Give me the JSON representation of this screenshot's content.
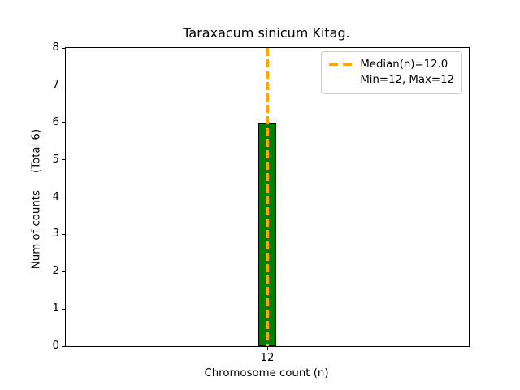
{
  "chart_data": {
    "type": "bar",
    "title": "Taraxacum sinicum Kitag.",
    "xlabel": "Chromosome count (n)",
    "ylabel": "Num of counts     (Total 6)",
    "categories": [
      "12"
    ],
    "values": [
      6
    ],
    "ylim": [
      0,
      8
    ],
    "yticks": [
      0,
      1,
      2,
      3,
      4,
      5,
      6,
      7,
      8
    ],
    "bar_color": "#008000",
    "bar_edge_color": "#000000",
    "median_line": {
      "x": 12,
      "color": "#ffa500",
      "style": "dashed"
    },
    "legend": {
      "position": "upper right",
      "entries": [
        {
          "label": "Median(n)=12.0",
          "handle": "orange-dashed-line"
        },
        {
          "label": "Min=12, Max=12",
          "handle": "none"
        }
      ]
    },
    "grid": false,
    "background_color": "#ffffff",
    "spine_color": "#000000"
  }
}
